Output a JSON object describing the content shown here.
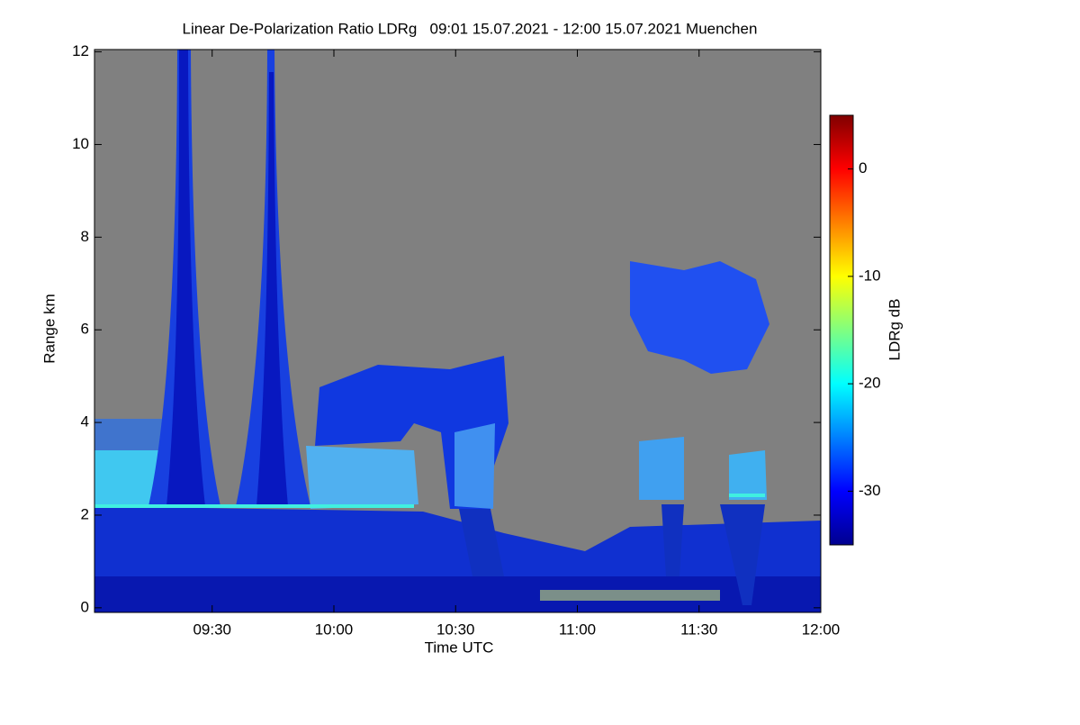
{
  "chart_data": {
    "type": "heatmap",
    "title": "Linear De-Polarization Ratio LDRg   09:01 15.07.2021 - 12:00 15.07.2021 Muenchen",
    "x_label": "Time UTC",
    "y_label": "Range km",
    "xlim": [
      541,
      720
    ],
    "xticks": [
      {
        "value": 570,
        "label": "09:30"
      },
      {
        "value": 600,
        "label": "10:00"
      },
      {
        "value": 630,
        "label": "10:30"
      },
      {
        "value": 660,
        "label": "11:00"
      },
      {
        "value": 690,
        "label": "11:30"
      },
      {
        "value": 720,
        "label": "12:00"
      }
    ],
    "ylim": [
      -0.1,
      12.05
    ],
    "yticks": [
      0,
      2,
      4,
      6,
      8,
      10,
      12
    ],
    "colorbar": {
      "label": "LDRg dB",
      "lim": [
        -35,
        5
      ],
      "ticks": [
        0,
        -10,
        -20,
        -30
      ],
      "colormap": [
        "#00008f",
        "#0000ff",
        "#0080ff",
        "#00ffff",
        "#80ff80",
        "#ffff00",
        "#ff8000",
        "#ff0000",
        "#800000"
      ]
    }
  }
}
